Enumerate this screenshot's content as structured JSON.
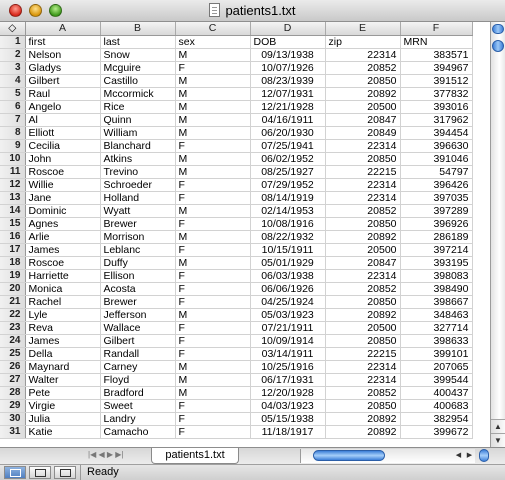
{
  "window": {
    "title": "patients1.txt"
  },
  "grid": {
    "corner_glyph": "◇",
    "columns": [
      "A",
      "B",
      "C",
      "D",
      "E",
      "F"
    ],
    "rows": [
      {
        "n": "1",
        "cells": [
          "first",
          "last",
          "sex",
          "DOB",
          "zip",
          "MRN"
        ]
      },
      {
        "n": "2",
        "cells": [
          "Nelson",
          "Snow",
          "M",
          "09/13/1938",
          "22314",
          "383571"
        ]
      },
      {
        "n": "3",
        "cells": [
          "Gladys",
          "Mcguire",
          "F",
          "10/07/1926",
          "20852",
          "394967"
        ]
      },
      {
        "n": "4",
        "cells": [
          "Gilbert",
          "Castillo",
          "M",
          "08/23/1939",
          "20850",
          "391512"
        ]
      },
      {
        "n": "5",
        "cells": [
          "Raul",
          "Mccormick",
          "M",
          "12/07/1931",
          "20892",
          "377832"
        ]
      },
      {
        "n": "6",
        "cells": [
          "Angelo",
          "Rice",
          "M",
          "12/21/1928",
          "20500",
          "393016"
        ]
      },
      {
        "n": "7",
        "cells": [
          "Al",
          "Quinn",
          "M",
          "04/16/1911",
          "20847",
          "317962"
        ]
      },
      {
        "n": "8",
        "cells": [
          "Elliott",
          "William",
          "M",
          "06/20/1930",
          "20849",
          "394454"
        ]
      },
      {
        "n": "9",
        "cells": [
          "Cecilia",
          "Blanchard",
          "F",
          "07/25/1941",
          "22314",
          "396630"
        ]
      },
      {
        "n": "10",
        "cells": [
          "John",
          "Atkins",
          "M",
          "06/02/1952",
          "20850",
          "391046"
        ]
      },
      {
        "n": "11",
        "cells": [
          "Roscoe",
          "Trevino",
          "M",
          "08/25/1927",
          "22215",
          "54797"
        ]
      },
      {
        "n": "12",
        "cells": [
          "Willie",
          "Schroeder",
          "F",
          "07/29/1952",
          "22314",
          "396426"
        ]
      },
      {
        "n": "13",
        "cells": [
          "Jane",
          "Holland",
          "F",
          "08/14/1919",
          "22314",
          "397035"
        ]
      },
      {
        "n": "14",
        "cells": [
          "Dominic",
          "Wyatt",
          "M",
          "02/14/1953",
          "20852",
          "397289"
        ]
      },
      {
        "n": "15",
        "cells": [
          "Agnes",
          "Brewer",
          "F",
          "10/08/1916",
          "20850",
          "396926"
        ]
      },
      {
        "n": "16",
        "cells": [
          "Arlie",
          "Morrison",
          "M",
          "08/22/1932",
          "20892",
          "286189"
        ]
      },
      {
        "n": "17",
        "cells": [
          "James",
          "Leblanc",
          "F",
          "10/15/1911",
          "20500",
          "397214"
        ]
      },
      {
        "n": "18",
        "cells": [
          "Roscoe",
          "Duffy",
          "M",
          "05/01/1929",
          "20847",
          "393195"
        ]
      },
      {
        "n": "19",
        "cells": [
          "Harriette",
          "Ellison",
          "F",
          "06/03/1938",
          "22314",
          "398083"
        ]
      },
      {
        "n": "20",
        "cells": [
          "Monica",
          "Acosta",
          "F",
          "06/06/1926",
          "20852",
          "398490"
        ]
      },
      {
        "n": "21",
        "cells": [
          "Rachel",
          "Brewer",
          "F",
          "04/25/1924",
          "20850",
          "398667"
        ]
      },
      {
        "n": "22",
        "cells": [
          "Lyle",
          "Jefferson",
          "M",
          "05/03/1923",
          "20892",
          "348463"
        ]
      },
      {
        "n": "23",
        "cells": [
          "Reva",
          "Wallace",
          "F",
          "07/21/1911",
          "20500",
          "327714"
        ]
      },
      {
        "n": "24",
        "cells": [
          "James",
          "Gilbert",
          "F",
          "10/09/1914",
          "20850",
          "398633"
        ]
      },
      {
        "n": "25",
        "cells": [
          "Della",
          "Randall",
          "F",
          "03/14/1911",
          "22215",
          "399101"
        ]
      },
      {
        "n": "26",
        "cells": [
          "Maynard",
          "Carney",
          "M",
          "10/25/1916",
          "22314",
          "207065"
        ]
      },
      {
        "n": "27",
        "cells": [
          "Walter",
          "Floyd",
          "M",
          "06/17/1931",
          "22314",
          "399544"
        ]
      },
      {
        "n": "28",
        "cells": [
          "Pete",
          "Bradford",
          "M",
          "12/20/1928",
          "20852",
          "400437"
        ]
      },
      {
        "n": "29",
        "cells": [
          "Virgie",
          "Sweet",
          "F",
          "04/03/1923",
          "20850",
          "400683"
        ]
      },
      {
        "n": "30",
        "cells": [
          "Julia",
          "Landry",
          "F",
          "05/15/1938",
          "20892",
          "382954"
        ]
      },
      {
        "n": "31",
        "cells": [
          "Katie",
          "Camacho",
          "F",
          "11/18/1917",
          "20892",
          "399672"
        ]
      }
    ]
  },
  "tabs": {
    "active_sheet": "patients1.txt",
    "nav_glyphs": "|◀ ◀ ▶ ▶|"
  },
  "scrollbars": {
    "up_arrow": "▲",
    "down_arrow": "▼",
    "left_arrow": "◀",
    "right_arrow": "▶"
  },
  "status": {
    "text": "Ready"
  },
  "colors": {
    "accent": "#3d7fd8",
    "grid_line": "#d2d2d2"
  }
}
